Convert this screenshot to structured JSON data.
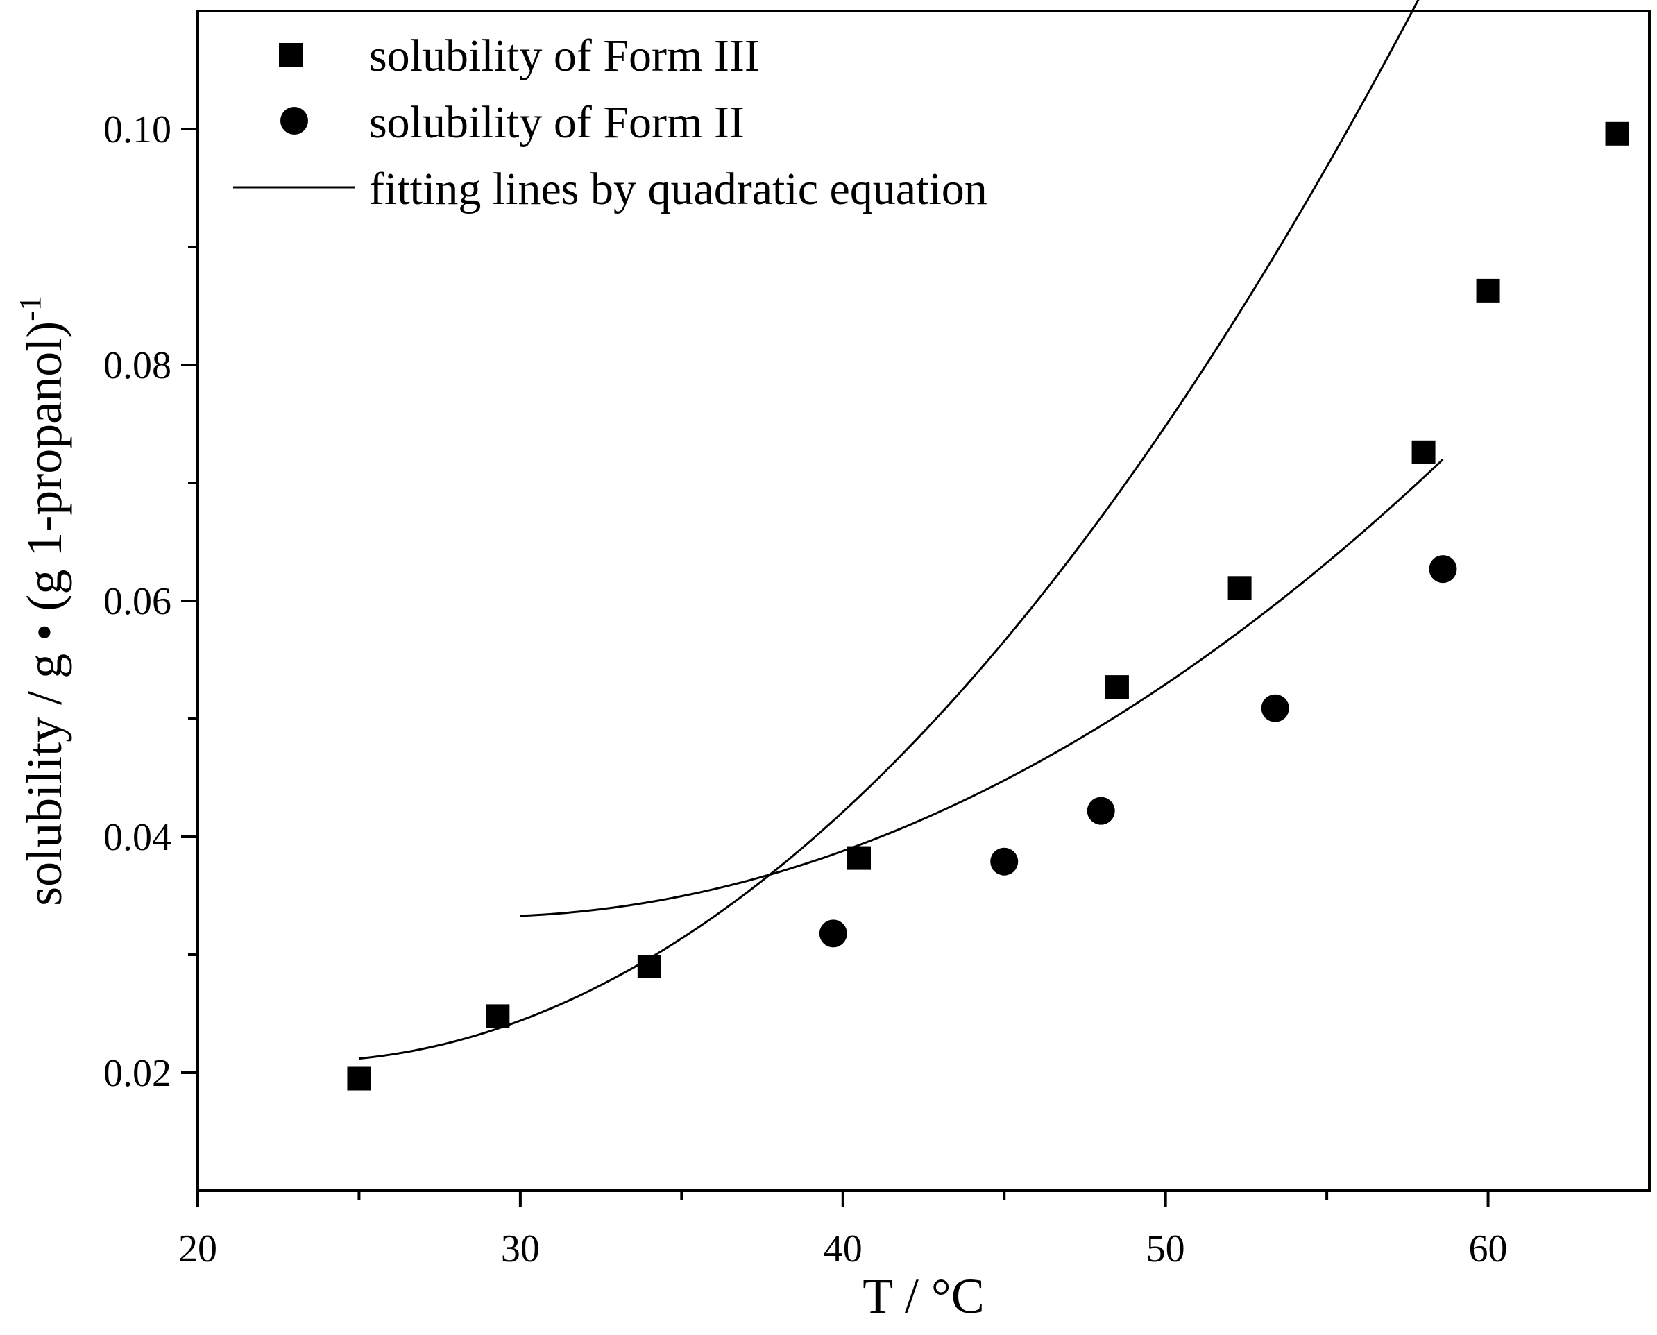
{
  "chart_data": {
    "type": "scatter",
    "title": "",
    "xlabel": "T / °C",
    "ylabel": "solubility  / g • (g 1-propanol)",
    "ylabel_superscript": "-1",
    "xlim": [
      20,
      65
    ],
    "ylim": [
      0.01,
      0.11
    ],
    "x_major_ticks": [
      20,
      30,
      40,
      50,
      60
    ],
    "x_minor_ticks": [
      25,
      35,
      45,
      55
    ],
    "x_tick_labels": [
      "20",
      "30",
      "40",
      "50",
      "60"
    ],
    "y_major_ticks": [
      0.02,
      0.04,
      0.06,
      0.08,
      0.1
    ],
    "y_minor_ticks": [
      0.03,
      0.05,
      0.07,
      0.09
    ],
    "y_tick_labels": [
      "0.02",
      "0.04",
      "0.06",
      "0.08",
      "0.10"
    ],
    "legend_position": "top-left",
    "series": [
      {
        "name": "solubility of Form III",
        "marker": "square",
        "x": [
          25.0,
          29.3,
          34.0,
          40.5,
          48.5,
          52.3,
          58.0,
          60.0,
          64.0
        ],
        "y": [
          0.0195,
          0.0248,
          0.029,
          0.0382,
          0.0527,
          0.0611,
          0.0726,
          0.0863,
          0.0996
        ]
      },
      {
        "name": "solubility of Form II",
        "marker": "circle",
        "x": [
          39.7,
          45.0,
          48.0,
          53.4,
          58.6
        ],
        "y": [
          0.0318,
          0.0379,
          0.0422,
          0.0509,
          0.0627
        ]
      }
    ],
    "fits": [
      {
        "name": "fitting lines by quadratic equation",
        "applies_to": "solubility of Form III",
        "x_range": [
          25.0,
          64.0
        ],
        "coefficients": [
          0.06145,
          -0.0034875,
          7.51e-05
        ]
      },
      {
        "name": "fitting lines by quadratic equation",
        "applies_to": "solubility of Form II",
        "x_range": [
          30.0,
          58.6
        ],
        "coefficients": [
          0.06865,
          -0.0024744,
          4.32e-05
        ]
      }
    ],
    "legend": [
      {
        "label": "solubility of Form III",
        "marker": "square"
      },
      {
        "label": "solubility of Form II",
        "marker": "circle"
      },
      {
        "label": "fitting lines by quadratic equation",
        "marker": "line"
      }
    ]
  }
}
